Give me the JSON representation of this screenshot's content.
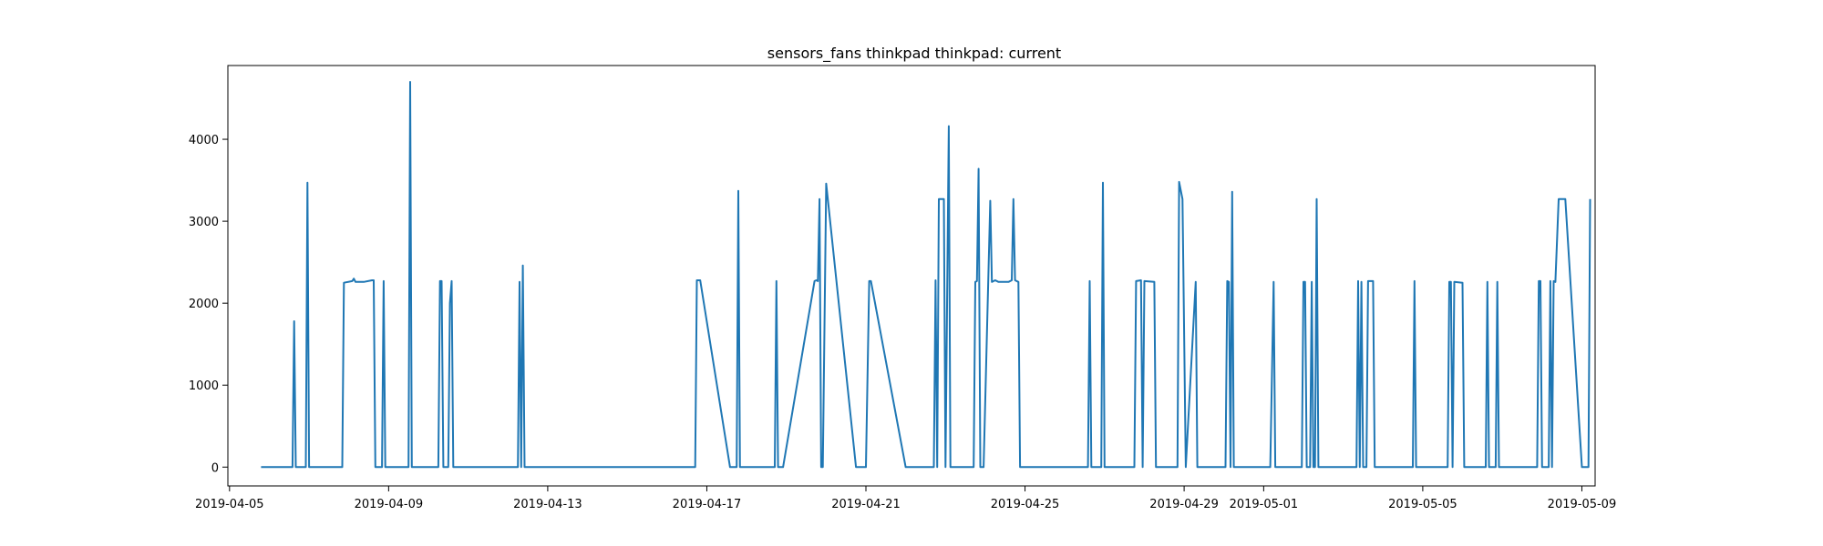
{
  "chart_data": {
    "type": "line",
    "title": "sensors_fans thinkpad thinkpad:  current",
    "xlabel": "",
    "ylabel": "",
    "x_tick_labels": [
      "2019-04-05",
      "2019-04-09",
      "2019-04-13",
      "2019-04-17",
      "2019-04-21",
      "2019-04-25",
      "2019-04-29",
      "2019-05-01",
      "2019-05-05",
      "2019-05-09"
    ],
    "y_tick_labels": [
      "0",
      "1000",
      "2000",
      "3000",
      "4000"
    ],
    "x_ticks": [
      "2019-04-05",
      "2019-04-09",
      "2019-04-13",
      "2019-04-17",
      "2019-04-21",
      "2019-04-25",
      "2019-04-29",
      "2019-05-01",
      "2019-05-05",
      "2019-05-09"
    ],
    "y_ticks": [
      0,
      1000,
      2000,
      3000,
      4000
    ],
    "xlim": [
      "2019-04-04T23:00",
      "2019-05-09T08:00"
    ],
    "ylim": [
      -230,
      4900
    ],
    "grid": false,
    "legend": "none",
    "series": [
      {
        "color": "#1f77b4",
        "points": [
          [
            "2019-04-05T19:00",
            0
          ],
          [
            "2019-04-06T14:00",
            0
          ],
          [
            "2019-04-06T15:00",
            1780
          ],
          [
            "2019-04-06T16:00",
            0
          ],
          [
            "2019-04-06T22:00",
            0
          ],
          [
            "2019-04-06T23:00",
            3470
          ],
          [
            "2019-04-07T00:00",
            0
          ],
          [
            "2019-04-07T20:00",
            0
          ],
          [
            "2019-04-07T21:00",
            2250
          ],
          [
            "2019-04-08T02:00",
            2270
          ],
          [
            "2019-04-08T03:00",
            2300
          ],
          [
            "2019-04-08T04:00",
            2260
          ],
          [
            "2019-04-08T09:00",
            2260
          ],
          [
            "2019-04-08T14:00",
            2280
          ],
          [
            "2019-04-08T15:00",
            2280
          ],
          [
            "2019-04-08T16:00",
            0
          ],
          [
            "2019-04-08T20:00",
            0
          ],
          [
            "2019-04-08T21:00",
            2270
          ],
          [
            "2019-04-08T22:00",
            0
          ],
          [
            "2019-04-09T12:00",
            0
          ],
          [
            "2019-04-09T13:00",
            4700
          ],
          [
            "2019-04-09T14:00",
            0
          ],
          [
            "2019-04-10T06:00",
            0
          ],
          [
            "2019-04-10T07:00",
            2270
          ],
          [
            "2019-04-10T08:00",
            2270
          ],
          [
            "2019-04-10T09:00",
            0
          ],
          [
            "2019-04-10T12:00",
            0
          ],
          [
            "2019-04-10T13:00",
            2000
          ],
          [
            "2019-04-10T14:00",
            2270
          ],
          [
            "2019-04-10T15:00",
            0
          ],
          [
            "2019-04-12T06:00",
            0
          ],
          [
            "2019-04-12T07:00",
            2260
          ],
          [
            "2019-04-12T08:00",
            0
          ],
          [
            "2019-04-12T09:00",
            2460
          ],
          [
            "2019-04-12T10:00",
            0
          ],
          [
            "2019-04-16T17:00",
            0
          ],
          [
            "2019-04-16T18:00",
            2280
          ],
          [
            "2019-04-16T20:00",
            2280
          ],
          [
            "2019-04-17T14:00",
            0
          ],
          [
            "2019-04-17T18:00",
            0
          ],
          [
            "2019-04-17T19:00",
            3370
          ],
          [
            "2019-04-17T20:00",
            0
          ],
          [
            "2019-04-18T17:00",
            0
          ],
          [
            "2019-04-18T18:00",
            2270
          ],
          [
            "2019-04-18T19:00",
            0
          ],
          [
            "2019-04-18T22:00",
            0
          ],
          [
            "2019-04-19T17:00",
            2270
          ],
          [
            "2019-04-19T18:00",
            2280
          ],
          [
            "2019-04-19T19:00",
            2270
          ],
          [
            "2019-04-19T20:00",
            3270
          ],
          [
            "2019-04-19T21:00",
            0
          ],
          [
            "2019-04-19T22:00",
            0
          ],
          [
            "2019-04-20T00:00",
            3460
          ],
          [
            "2019-04-20T18:00",
            0
          ],
          [
            "2019-04-21T00:00",
            0
          ],
          [
            "2019-04-21T02:00",
            2270
          ],
          [
            "2019-04-21T03:00",
            2270
          ],
          [
            "2019-04-22T00:00",
            0
          ],
          [
            "2019-04-22T17:00",
            0
          ],
          [
            "2019-04-22T18:00",
            2280
          ],
          [
            "2019-04-22T19:00",
            0
          ],
          [
            "2019-04-22T20:00",
            3270
          ],
          [
            "2019-04-22T23:00",
            3270
          ],
          [
            "2019-04-23T00:00",
            0
          ],
          [
            "2019-04-23T02:00",
            4160
          ],
          [
            "2019-04-23T03:00",
            0
          ],
          [
            "2019-04-23T17:00",
            0
          ],
          [
            "2019-04-23T18:00",
            2260
          ],
          [
            "2019-04-23T19:00",
            2270
          ],
          [
            "2019-04-23T20:00",
            3640
          ],
          [
            "2019-04-23T21:00",
            0
          ],
          [
            "2019-04-23T23:00",
            0
          ],
          [
            "2019-04-24T03:00",
            3250
          ],
          [
            "2019-04-24T04:00",
            2260
          ],
          [
            "2019-04-24T06:00",
            2280
          ],
          [
            "2019-04-24T08:00",
            2260
          ],
          [
            "2019-04-24T14:00",
            2260
          ],
          [
            "2019-04-24T16:00",
            2280
          ],
          [
            "2019-04-24T17:00",
            3270
          ],
          [
            "2019-04-24T18:00",
            2280
          ],
          [
            "2019-04-24T20:00",
            2260
          ],
          [
            "2019-04-24T21:00",
            0
          ],
          [
            "2019-04-26T14:00",
            0
          ],
          [
            "2019-04-26T15:00",
            2270
          ],
          [
            "2019-04-26T16:00",
            0
          ],
          [
            "2019-04-26T22:00",
            0
          ],
          [
            "2019-04-26T23:00",
            3470
          ],
          [
            "2019-04-27T00:00",
            0
          ],
          [
            "2019-04-27T18:00",
            0
          ],
          [
            "2019-04-27T19:00",
            2270
          ],
          [
            "2019-04-27T22:00",
            2280
          ],
          [
            "2019-04-27T23:00",
            0
          ],
          [
            "2019-04-28T00:00",
            2270
          ],
          [
            "2019-04-28T06:00",
            2260
          ],
          [
            "2019-04-28T07:00",
            0
          ],
          [
            "2019-04-28T20:00",
            0
          ],
          [
            "2019-04-28T21:00",
            3480
          ],
          [
            "2019-04-28T23:00",
            3270
          ],
          [
            "2019-04-29T01:00",
            0
          ],
          [
            "2019-04-29T07:00",
            2260
          ],
          [
            "2019-04-29T08:00",
            0
          ],
          [
            "2019-04-30T01:00",
            0
          ],
          [
            "2019-04-30T02:00",
            2270
          ],
          [
            "2019-04-30T03:00",
            2260
          ],
          [
            "2019-04-30T04:00",
            0
          ],
          [
            "2019-04-30T05:00",
            3360
          ],
          [
            "2019-04-30T06:00",
            0
          ],
          [
            "2019-05-01T04:00",
            0
          ],
          [
            "2019-05-01T06:00",
            2260
          ],
          [
            "2019-05-01T07:00",
            0
          ],
          [
            "2019-05-01T23:00",
            0
          ],
          [
            "2019-05-02T00:00",
            2260
          ],
          [
            "2019-05-02T01:00",
            2260
          ],
          [
            "2019-05-02T02:00",
            0
          ],
          [
            "2019-05-02T04:00",
            0
          ],
          [
            "2019-05-02T05:00",
            2260
          ],
          [
            "2019-05-02T06:00",
            0
          ],
          [
            "2019-05-02T07:00",
            0
          ],
          [
            "2019-05-02T08:00",
            3270
          ],
          [
            "2019-05-02T09:00",
            0
          ],
          [
            "2019-05-03T08:00",
            0
          ],
          [
            "2019-05-03T09:00",
            2270
          ],
          [
            "2019-05-03T10:00",
            0
          ],
          [
            "2019-05-03T11:00",
            2260
          ],
          [
            "2019-05-03T12:00",
            0
          ],
          [
            "2019-05-03T14:00",
            0
          ],
          [
            "2019-05-03T15:00",
            2270
          ],
          [
            "2019-05-03T18:00",
            2270
          ],
          [
            "2019-05-03T19:00",
            0
          ],
          [
            "2019-05-04T18:00",
            0
          ],
          [
            "2019-05-04T19:00",
            2270
          ],
          [
            "2019-05-04T20:00",
            0
          ],
          [
            "2019-05-05T15:00",
            0
          ],
          [
            "2019-05-05T16:00",
            2260
          ],
          [
            "2019-05-05T17:00",
            2260
          ],
          [
            "2019-05-05T18:00",
            0
          ],
          [
            "2019-05-05T19:00",
            2260
          ],
          [
            "2019-05-06T00:00",
            2250
          ],
          [
            "2019-05-06T01:00",
            0
          ],
          [
            "2019-05-06T14:00",
            0
          ],
          [
            "2019-05-06T15:00",
            2260
          ],
          [
            "2019-05-06T16:00",
            0
          ],
          [
            "2019-05-06T20:00",
            0
          ],
          [
            "2019-05-06T21:00",
            2260
          ],
          [
            "2019-05-06T22:00",
            0
          ],
          [
            "2019-05-07T21:00",
            0
          ],
          [
            "2019-05-07T22:00",
            2270
          ],
          [
            "2019-05-07T23:00",
            2270
          ],
          [
            "2019-05-08T00:00",
            0
          ],
          [
            "2019-05-08T04:00",
            0
          ],
          [
            "2019-05-08T05:00",
            2270
          ],
          [
            "2019-05-08T06:00",
            0
          ],
          [
            "2019-05-08T07:00",
            2270
          ],
          [
            "2019-05-08T08:00",
            2260
          ],
          [
            "2019-05-08T10:00",
            3270
          ],
          [
            "2019-05-08T14:00",
            3270
          ],
          [
            "2019-05-09T00:00",
            0
          ],
          [
            "2019-05-09T04:00",
            0
          ],
          [
            "2019-05-09T05:00",
            3270
          ]
        ]
      }
    ]
  }
}
